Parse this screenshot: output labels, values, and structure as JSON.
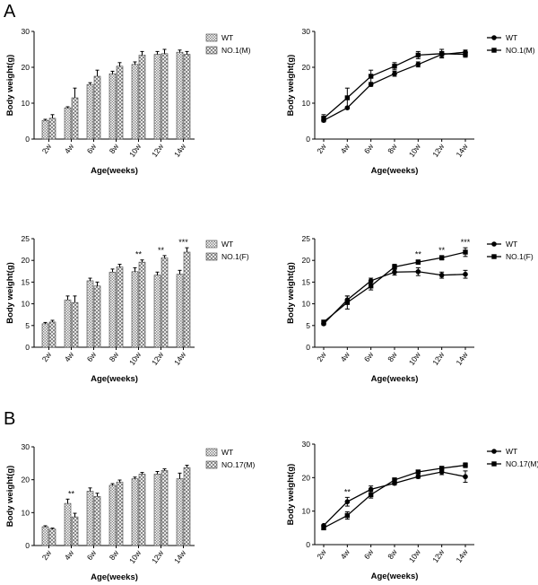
{
  "panels": {
    "a": "A",
    "b": "B"
  },
  "colors": {
    "line": "#000000",
    "hatch_wt": "#9a9a9a",
    "hatch_mut": "#b4b4b4"
  },
  "chart_data": [
    {
      "id": "c1",
      "type": "bar",
      "xlabel": "Age(weeks)",
      "ylabel": "Body weight(g)",
      "categories": [
        "2w",
        "4w",
        "6w",
        "8w",
        "10w",
        "12w",
        "14w"
      ],
      "ylim": [
        0,
        30
      ],
      "yticks": [
        0,
        10,
        20,
        30
      ],
      "series": [
        {
          "name": "WT",
          "values": [
            5.2,
            8.7,
            15.2,
            18.2,
            20.8,
            23.6,
            24.2
          ],
          "errors": [
            0.3,
            0.3,
            0.5,
            0.7,
            0.7,
            0.8,
            0.6
          ]
        },
        {
          "name": "NO.1(M)",
          "values": [
            5.8,
            11.5,
            17.5,
            20.3,
            23.4,
            23.8,
            23.6
          ],
          "errors": [
            1.0,
            2.7,
            1.7,
            1.0,
            1.0,
            1.2,
            0.8
          ]
        }
      ],
      "annotations": []
    },
    {
      "id": "c2",
      "type": "line",
      "xlabel": "Age(weeks)",
      "ylabel": "Body weight(g)",
      "categories": [
        "2w",
        "4w",
        "6w",
        "8w",
        "10w",
        "12w",
        "14w"
      ],
      "ylim": [
        0,
        30
      ],
      "yticks": [
        0,
        10,
        20,
        30
      ],
      "series": [
        {
          "name": "WT",
          "marker": "circle",
          "values": [
            5.2,
            8.7,
            15.2,
            18.2,
            20.8,
            23.6,
            24.2
          ],
          "errors": [
            0.3,
            0.3,
            0.5,
            0.7,
            0.7,
            0.8,
            0.6
          ]
        },
        {
          "name": "NO.1(M)",
          "marker": "square",
          "values": [
            5.8,
            11.5,
            17.5,
            20.3,
            23.4,
            23.8,
            23.6
          ],
          "errors": [
            1.0,
            2.7,
            1.7,
            1.0,
            1.0,
            1.2,
            0.8
          ]
        }
      ],
      "annotations": []
    },
    {
      "id": "c3",
      "type": "bar",
      "xlabel": "Age(weeks)",
      "ylabel": "Body weight(g)",
      "categories": [
        "2w",
        "4w",
        "6w",
        "8w",
        "10w",
        "12w",
        "14w"
      ],
      "ylim": [
        0,
        25
      ],
      "yticks": [
        0,
        5,
        10,
        15,
        20,
        25
      ],
      "series": [
        {
          "name": "WT",
          "values": [
            5.4,
            10.9,
            15.3,
            17.3,
            17.4,
            16.6,
            16.8
          ],
          "errors": [
            0.3,
            0.9,
            0.6,
            0.7,
            0.9,
            0.7,
            0.9
          ]
        },
        {
          "name": "NO.1(F)",
          "values": [
            5.8,
            10.3,
            14.1,
            18.5,
            19.6,
            20.6,
            21.9
          ],
          "errors": [
            0.4,
            1.5,
            0.9,
            0.6,
            0.5,
            0.5,
            1.0
          ]
        }
      ],
      "annotations": [
        {
          "index": 4,
          "text": "**"
        },
        {
          "index": 5,
          "text": "**"
        },
        {
          "index": 6,
          "text": "***"
        }
      ]
    },
    {
      "id": "c4",
      "type": "line",
      "xlabel": "Age(weeks)",
      "ylabel": "Body weight(g)",
      "categories": [
        "2w",
        "4w",
        "6w",
        "8w",
        "10w",
        "12w",
        "14w"
      ],
      "ylim": [
        0,
        25
      ],
      "yticks": [
        0,
        5,
        10,
        15,
        20,
        25
      ],
      "series": [
        {
          "name": "WT",
          "marker": "circle",
          "values": [
            5.4,
            10.9,
            15.3,
            17.3,
            17.4,
            16.6,
            16.8
          ],
          "errors": [
            0.3,
            0.9,
            0.6,
            0.7,
            0.9,
            0.7,
            0.9
          ]
        },
        {
          "name": "NO.1(F)",
          "marker": "square",
          "values": [
            5.8,
            10.3,
            14.1,
            18.5,
            19.6,
            20.6,
            21.9
          ],
          "errors": [
            0.4,
            1.5,
            0.9,
            0.6,
            0.5,
            0.5,
            1.0
          ]
        }
      ],
      "annotations": [
        {
          "index": 4,
          "text": "**"
        },
        {
          "index": 5,
          "text": "**"
        },
        {
          "index": 6,
          "text": "***"
        }
      ]
    },
    {
      "id": "c5",
      "type": "bar",
      "xlabel": "Age(weeks)",
      "ylabel": "Body weight(g)",
      "categories": [
        "2w",
        "4w",
        "6w",
        "8w",
        "10w",
        "12w",
        "14w"
      ],
      "ylim": [
        0,
        30
      ],
      "yticks": [
        0,
        10,
        20,
        30
      ],
      "series": [
        {
          "name": "WT",
          "values": [
            5.7,
            12.8,
            16.5,
            18.3,
            20.3,
            21.7,
            20.3
          ],
          "errors": [
            0.3,
            1.3,
            1.0,
            0.5,
            0.5,
            0.8,
            1.7
          ]
        },
        {
          "name": "NO.17(M)",
          "values": [
            5.0,
            8.7,
            14.9,
            19.3,
            21.7,
            22.8,
            23.7
          ],
          "errors": [
            0.3,
            1.1,
            1.0,
            0.6,
            0.5,
            0.5,
            0.7
          ]
        }
      ],
      "annotations": [
        {
          "index": 1,
          "text": "**"
        }
      ]
    },
    {
      "id": "c6",
      "type": "line",
      "xlabel": "Age(weeks)",
      "ylabel": "Body weight(g)",
      "categories": [
        "2w",
        "4w",
        "6w",
        "8w",
        "10w",
        "12w",
        "14w"
      ],
      "ylim": [
        0,
        30
      ],
      "yticks": [
        0,
        10,
        20,
        30
      ],
      "series": [
        {
          "name": "WT",
          "marker": "circle",
          "values": [
            5.7,
            12.8,
            16.5,
            18.3,
            20.3,
            21.7,
            20.3
          ],
          "errors": [
            0.3,
            1.3,
            1.0,
            0.5,
            0.5,
            0.8,
            1.7
          ]
        },
        {
          "name": "NO.17(M)",
          "marker": "square",
          "values": [
            5.0,
            8.7,
            14.9,
            19.3,
            21.7,
            22.8,
            23.7
          ],
          "errors": [
            0.3,
            1.1,
            1.0,
            0.6,
            0.5,
            0.5,
            0.7
          ]
        }
      ],
      "annotations": [
        {
          "index": 1,
          "text": "**"
        }
      ]
    }
  ]
}
